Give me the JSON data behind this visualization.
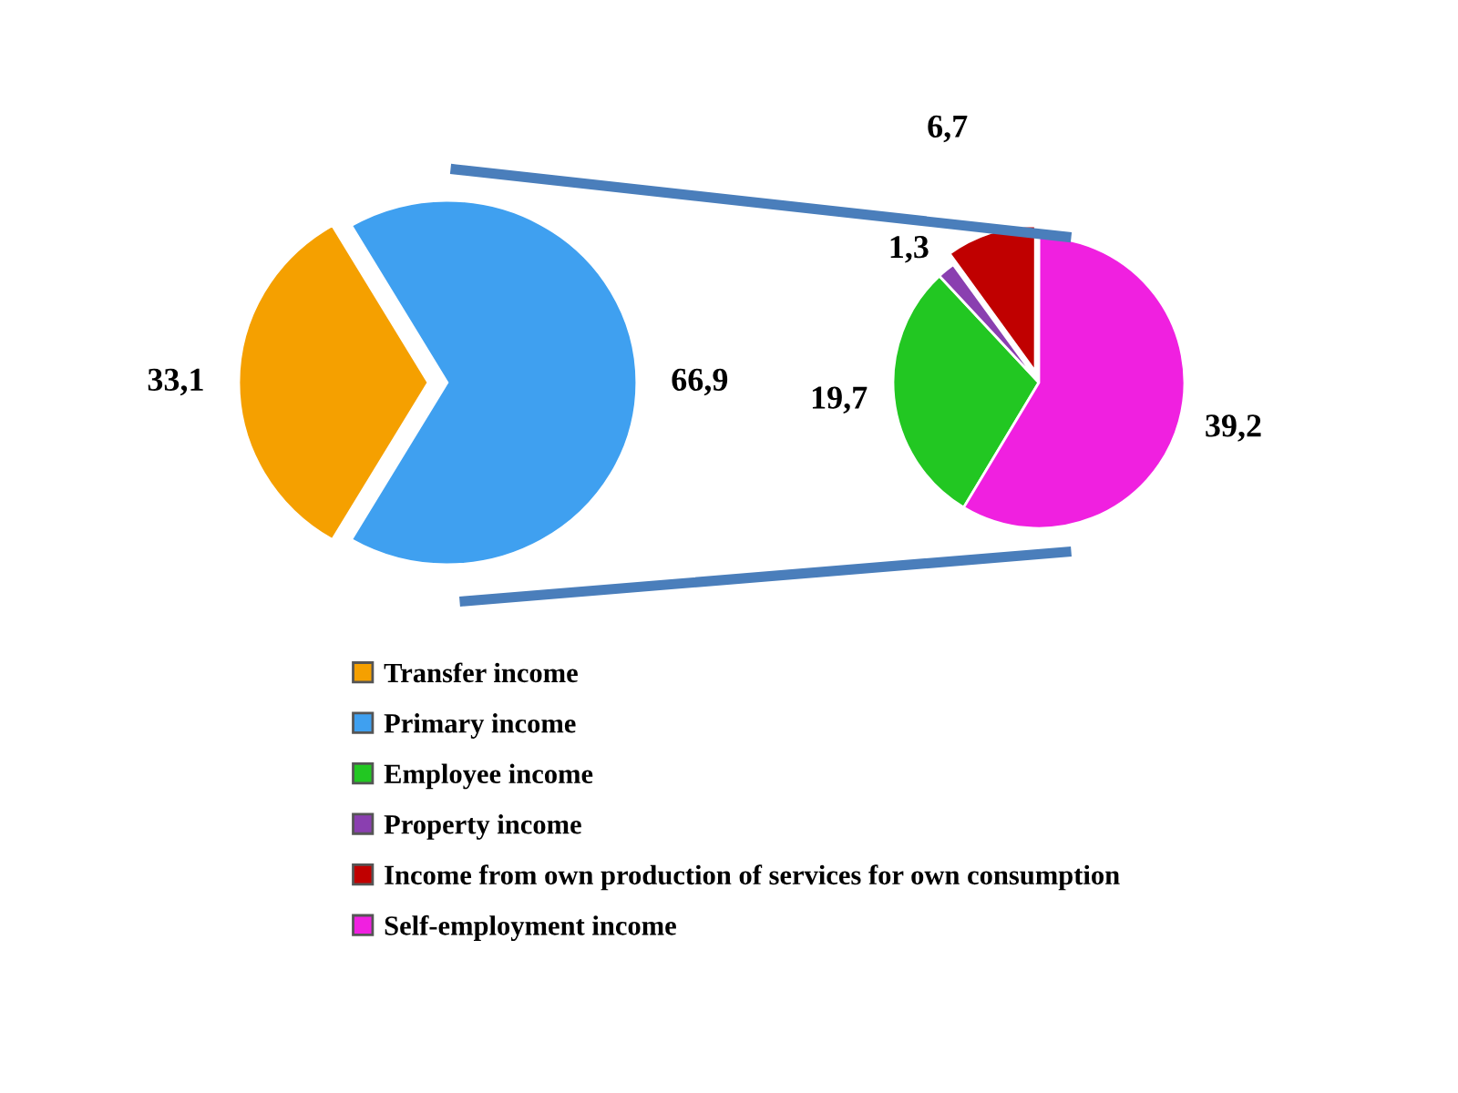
{
  "chart_data": [
    {
      "type": "pie",
      "categories": [
        "Transfer income",
        "Primary income"
      ],
      "values": [
        33.1,
        66.9
      ],
      "colors": [
        "#f5a000",
        "#3fa0f0"
      ],
      "value_labels": [
        "33,1",
        "66,9"
      ],
      "legend": "bottom"
    },
    {
      "type": "pie",
      "categories": [
        "Employee income",
        "Property income",
        "Income from own production of services for own consumption",
        "Self-employment income"
      ],
      "values": [
        19.7,
        1.3,
        6.7,
        39.2
      ],
      "colors": [
        "#22c722",
        "#8a3fb0",
        "#c00000",
        "#f020e0"
      ],
      "value_labels": [
        "19,7",
        "1,3",
        "6,7",
        "39,2"
      ],
      "legend": "bottom"
    }
  ]
}
